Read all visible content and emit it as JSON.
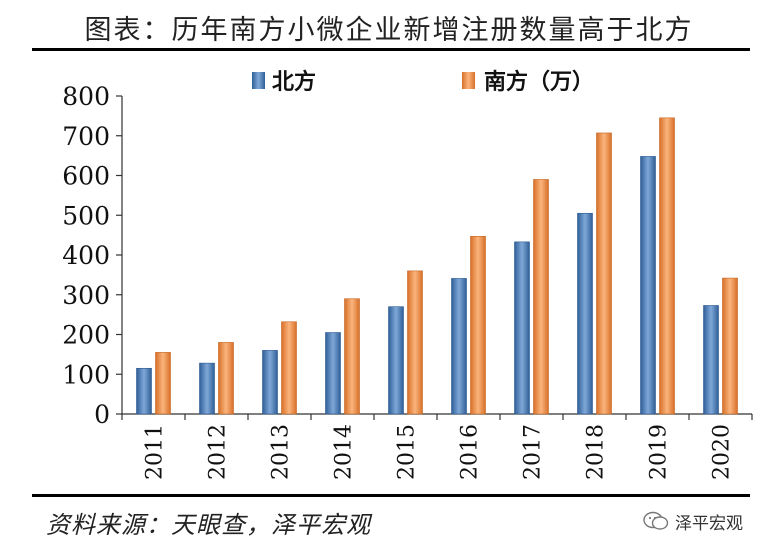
{
  "title": "图表：历年南方小微企业新增注册数量高于北方",
  "source": "资料来源：天眼查，泽平宏观",
  "watermark": "泽平宏观",
  "chart_data": {
    "type": "bar",
    "categories": [
      "2011",
      "2012",
      "2013",
      "2014",
      "2015",
      "2016",
      "2017",
      "2018",
      "2019",
      "2020"
    ],
    "series": [
      {
        "name": "北方",
        "color": "#4f81bd",
        "values": [
          115,
          128,
          160,
          205,
          270,
          341,
          433,
          505,
          648,
          273
        ]
      },
      {
        "name": "南方（万）",
        "color": "#f79646",
        "values": [
          155,
          180,
          232,
          290,
          360,
          447,
          590,
          707,
          745,
          342
        ]
      }
    ],
    "yticks": [
      0,
      100,
      200,
      300,
      400,
      500,
      600,
      700,
      800
    ],
    "ylim": [
      0,
      800
    ],
    "legend": "top-center",
    "grid": false
  }
}
